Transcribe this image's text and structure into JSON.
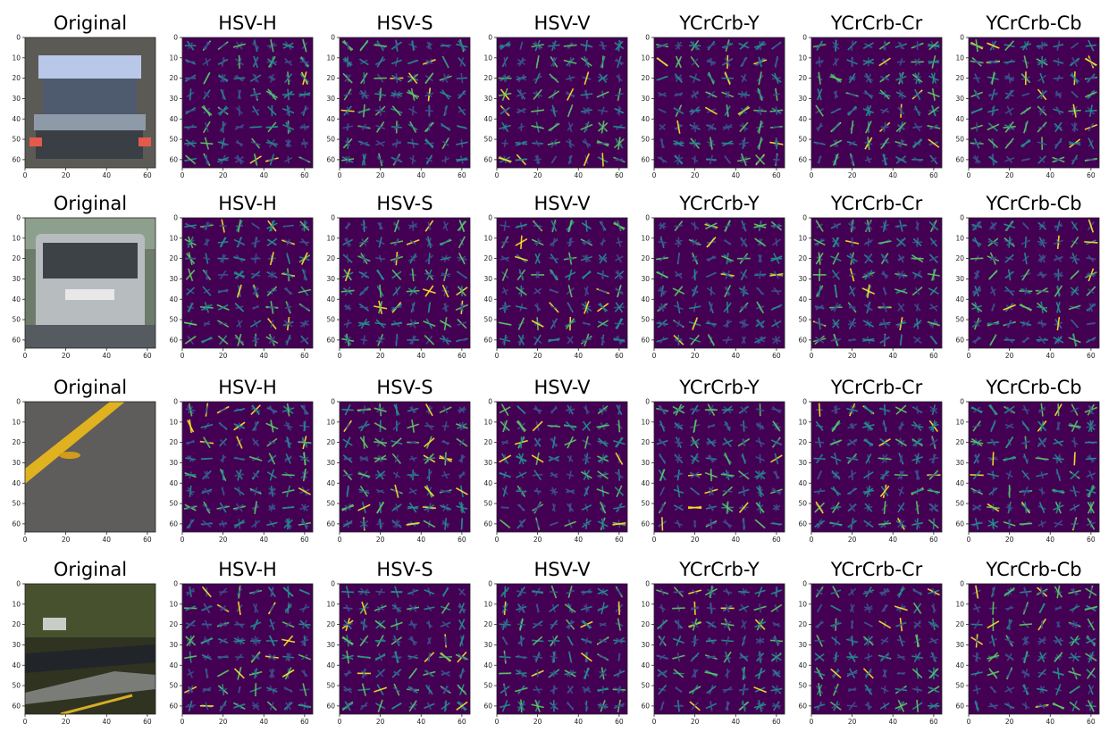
{
  "figure": {
    "rows": 4,
    "columns": [
      "Original",
      "HSV-H",
      "HSV-S",
      "HSV-V",
      "YCrCrb-Y",
      "YCrCrb-Cr",
      "YCrCrb-Cb"
    ]
  },
  "colors": {
    "background": "#440154",
    "low": "#3b528b",
    "mid": "#21918c",
    "high": "#5ec962",
    "peak": "#fde725"
  },
  "chart_data": {
    "type": "heatmap",
    "description_of_grid": "4 rows x 7 columns of image panels: the original 64x64 image followed by HOG feature visualizations for six color channels",
    "xlim": [
      0,
      64
    ],
    "ylim": [
      64,
      0
    ],
    "xticks": [
      0,
      20,
      40,
      60
    ],
    "yticks": [
      0,
      10,
      20,
      30,
      40,
      50,
      60
    ],
    "grid": false,
    "rows": [
      {
        "original": "car rear (blurry)",
        "panels": [
          {
            "title": "Original"
          },
          {
            "title": "HSV-H"
          },
          {
            "title": "HSV-S"
          },
          {
            "title": "HSV-V"
          },
          {
            "title": "YCrCrb-Y"
          },
          {
            "title": "YCrCrb-Cr"
          },
          {
            "title": "YCrCrb-Cb"
          }
        ]
      },
      {
        "original": "silver station wagon rear",
        "panels": [
          {
            "title": "Original"
          },
          {
            "title": "HSV-H"
          },
          {
            "title": "HSV-S"
          },
          {
            "title": "HSV-V"
          },
          {
            "title": "YCrCrb-Y"
          },
          {
            "title": "YCrCrb-Cr"
          },
          {
            "title": "YCrCrb-Cb"
          }
        ]
      },
      {
        "original": "road with yellow lane line",
        "panels": [
          {
            "title": "Original"
          },
          {
            "title": "HSV-H"
          },
          {
            "title": "HSV-S"
          },
          {
            "title": "HSV-V"
          },
          {
            "title": "YCrCrb-Y"
          },
          {
            "title": "YCrCrb-Cr"
          },
          {
            "title": "YCrCrb-Cb"
          }
        ]
      },
      {
        "original": "dark road scene with sign",
        "panels": [
          {
            "title": "Original"
          },
          {
            "title": "HSV-H"
          },
          {
            "title": "HSV-S"
          },
          {
            "title": "HSV-V"
          },
          {
            "title": "YCrCrb-Y"
          },
          {
            "title": "YCrCrb-Cr"
          },
          {
            "title": "YCrCrb-Cb"
          }
        ]
      }
    ]
  }
}
